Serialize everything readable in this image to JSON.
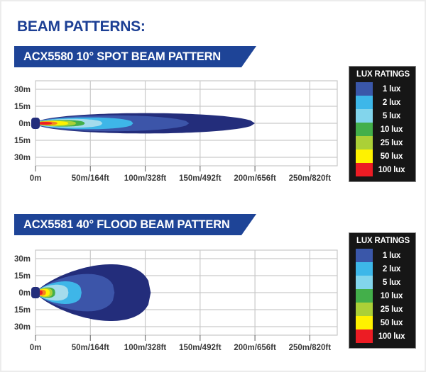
{
  "page": {
    "title": "BEAM PATTERNS:",
    "title_color": "#1c3f94",
    "background": "#ffffff"
  },
  "banners": [
    {
      "label": "ACX5580 10° SPOT BEAM PATTERN",
      "bg": "#1e4497",
      "text_color": "#ffffff"
    },
    {
      "label": "ACX5581 40° FLOOD BEAM PATTERN",
      "bg": "#1e4497",
      "text_color": "#ffffff"
    }
  ],
  "legend": {
    "title": "LUX RATINGS",
    "bg": "#161616",
    "text_color": "#ffffff",
    "entries": [
      {
        "label": "1 lux",
        "color": "#3a57a9"
      },
      {
        "label": "2 lux",
        "color": "#3db7e9"
      },
      {
        "label": "5 lux",
        "color": "#82d5ec"
      },
      {
        "label": "10 lux",
        "color": "#43af4a"
      },
      {
        "label": "25 lux",
        "color": "#abd037"
      },
      {
        "label": "50 lux",
        "color": "#fff200"
      },
      {
        "label": "100 lux",
        "color": "#ec1c24"
      }
    ]
  },
  "chart_data": [
    {
      "type": "area",
      "title": "ACX5580 10° SPOT BEAM PATTERN",
      "x_ticks": [
        "0m",
        "50m/164ft",
        "100m/328ft",
        "150m/492ft",
        "200m/656ft",
        "250m/820ft"
      ],
      "x_tick_m": [
        0,
        50,
        100,
        150,
        200,
        250
      ],
      "y_ticks": [
        "30m",
        "15m",
        "0m",
        "15m",
        "30m"
      ],
      "y_tick_m": [
        30,
        15,
        0,
        -15,
        -30
      ],
      "x_range_m": [
        0,
        275
      ],
      "y_range_m": [
        -37.5,
        37.5
      ],
      "grid": true,
      "grid_color": "#c9c9c9",
      "axis_color": "#777777",
      "label_color": "#3a3a3a",
      "fixture_color": "#232d7b",
      "beam_layers": [
        {
          "name": "beam-edge",
          "color": "#232d7b",
          "reach_m": 200,
          "half_width_m": 9.0,
          "shape": [
            0.5,
            0.5
          ]
        },
        {
          "name": "1-lux",
          "color": "#3c55a9",
          "reach_m": 140,
          "half_width_m": 7.0,
          "shape": [
            0.5,
            0.5
          ]
        },
        {
          "name": "2-lux",
          "color": "#3eb6e8",
          "reach_m": 89,
          "half_width_m": 5.2,
          "shape": [
            0.5,
            0.42
          ]
        },
        {
          "name": "5-lux",
          "color": "#a5dcec",
          "reach_m": 61,
          "half_width_m": 3.9,
          "shape": [
            0.5,
            0.4
          ]
        },
        {
          "name": "10-lux",
          "color": "#43af4a",
          "reach_m": 45,
          "half_width_m": 2.9,
          "shape": [
            0.5,
            0.4
          ]
        },
        {
          "name": "25-lux",
          "color": "#abd037",
          "reach_m": 37,
          "half_width_m": 2.4,
          "shape": [
            0.5,
            0.4
          ]
        },
        {
          "name": "50-lux",
          "color": "#fff200",
          "reach_m": 30,
          "half_width_m": 2.0,
          "shape": [
            0.5,
            0.4
          ]
        },
        {
          "name": "75-lux",
          "color": "#f58220",
          "reach_m": 20,
          "half_width_m": 1.6,
          "shape": [
            0.5,
            0.4
          ]
        },
        {
          "name": "100-lux",
          "color": "#ec1c24",
          "reach_m": 15,
          "half_width_m": 1.2,
          "shape": [
            0.5,
            0.4
          ]
        }
      ]
    },
    {
      "type": "area",
      "title": "ACX5581 40° FLOOD BEAM PATTERN",
      "x_ticks": [
        "0m",
        "50m/164ft",
        "100m/328ft",
        "150m/492ft",
        "200m/656ft",
        "250m/820ft"
      ],
      "x_tick_m": [
        0,
        50,
        100,
        150,
        200,
        250
      ],
      "y_ticks": [
        "30m",
        "15m",
        "0m",
        "15m",
        "30m"
      ],
      "y_tick_m": [
        30,
        15,
        0,
        -15,
        -30
      ],
      "x_range_m": [
        0,
        275
      ],
      "y_range_m": [
        -37.5,
        37.5
      ],
      "grid": true,
      "grid_color": "#c9c9c9",
      "axis_color": "#777777",
      "label_color": "#3a3a3a",
      "fixture_color": "#232d7b",
      "beam_layers": [
        {
          "name": "beam-edge",
          "color": "#232d7b",
          "reach_m": 105,
          "half_width_m": 25.0,
          "shape": [
            0.8,
            0.42
          ]
        },
        {
          "name": "1-lux",
          "color": "#3c55a9",
          "reach_m": 72,
          "half_width_m": 16.5,
          "shape": [
            0.8,
            0.42
          ]
        },
        {
          "name": "2-lux",
          "color": "#3eb6e8",
          "reach_m": 42,
          "half_width_m": 10.0,
          "shape": [
            0.75,
            0.4
          ]
        },
        {
          "name": "5-lux",
          "color": "#a5dcec",
          "reach_m": 30,
          "half_width_m": 7.0,
          "shape": [
            0.7,
            0.38
          ]
        },
        {
          "name": "10-lux",
          "color": "#43af4a",
          "reach_m": 18,
          "half_width_m": 4.6,
          "shape": [
            0.65,
            0.38
          ]
        },
        {
          "name": "25-lux",
          "color": "#abd037",
          "reach_m": 15.5,
          "half_width_m": 4.0,
          "shape": [
            0.65,
            0.38
          ]
        },
        {
          "name": "50-lux",
          "color": "#fff200",
          "reach_m": 13,
          "half_width_m": 3.4,
          "shape": [
            0.65,
            0.38
          ]
        },
        {
          "name": "75-lux",
          "color": "#f58220",
          "reach_m": 9.5,
          "half_width_m": 2.6,
          "shape": [
            0.6,
            0.38
          ]
        },
        {
          "name": "100-lux",
          "color": "#ec1c24",
          "reach_m": 6.5,
          "half_width_m": 1.9,
          "shape": [
            0.6,
            0.38
          ]
        }
      ]
    }
  ]
}
